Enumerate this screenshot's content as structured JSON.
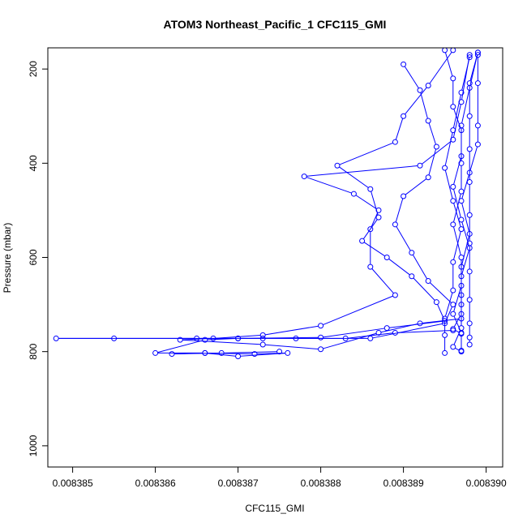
{
  "chart_data": {
    "type": "line",
    "title": "ATOM3 Northeast_Pacific_1 CFC115_GMI",
    "xlabel": "CFC115_GMI",
    "ylabel": "Pressure (mbar)",
    "xlim": [
      0.0083847,
      0.0083902
    ],
    "ylim": [
      1045,
      155
    ],
    "y_reversed": true,
    "grid": false,
    "legend": "none",
    "x_ticks": [
      0.008385,
      0.008386,
      0.008387,
      0.008388,
      0.008389,
      0.00839
    ],
    "x_tick_labels": [
      "0.008385",
      "0.008386",
      "0.008387",
      "0.008388",
      "0.008389",
      "0.008390"
    ],
    "y_ticks": [
      200,
      400,
      600,
      800,
      1000
    ],
    "y_tick_labels": [
      "200",
      "400",
      "600",
      "800",
      "1000"
    ],
    "series_color": "#0000ff",
    "series": [
      {
        "points": [
          [
            0.0083896,
            160
          ],
          [
            0.0083893,
            235
          ],
          [
            0.008389,
            300
          ],
          [
            0.0083889,
            355
          ],
          [
            0.0083882,
            405
          ],
          [
            0.0083886,
            455
          ],
          [
            0.0083887,
            515
          ],
          [
            0.0083885,
            565
          ],
          [
            0.0083888,
            600
          ],
          [
            0.0083891,
            640
          ],
          [
            0.0083894,
            695
          ],
          [
            0.0083895,
            735
          ],
          [
            0.0083888,
            750
          ],
          [
            0.008388,
            770
          ],
          [
            0.008387,
            772
          ],
          [
            0.0083855,
            772
          ],
          [
            0.0083848,
            772
          ],
          [
            0.0083865,
            772
          ],
          [
            0.0083873,
            772
          ],
          [
            0.0083883,
            772
          ],
          [
            0.0083889,
            760
          ],
          [
            0.0083896,
            755
          ]
        ]
      },
      {
        "points": [
          [
            0.0083898,
            170
          ],
          [
            0.0083897,
            270
          ],
          [
            0.0083896,
            350
          ],
          [
            0.0083892,
            405
          ],
          [
            0.0083878,
            428
          ],
          [
            0.0083884,
            465
          ],
          [
            0.0083887,
            500
          ],
          [
            0.0083886,
            540
          ],
          [
            0.0083886,
            620
          ],
          [
            0.0083889,
            680
          ],
          [
            0.008388,
            745
          ],
          [
            0.0083873,
            765
          ],
          [
            0.0083867,
            772
          ],
          [
            0.0083863,
            775
          ],
          [
            0.0083873,
            785
          ],
          [
            0.008388,
            795
          ],
          [
            0.0083887,
            760
          ],
          [
            0.0083892,
            740
          ],
          [
            0.0083897,
            730
          ]
        ]
      },
      {
        "points": [
          [
            0.008389,
            190
          ],
          [
            0.0083892,
            245
          ],
          [
            0.0083893,
            310
          ],
          [
            0.0083894,
            365
          ],
          [
            0.0083893,
            430
          ],
          [
            0.008389,
            470
          ],
          [
            0.0083889,
            530
          ],
          [
            0.0083891,
            590
          ],
          [
            0.0083893,
            650
          ],
          [
            0.0083896,
            700
          ],
          [
            0.0083895,
            740
          ],
          [
            0.0083886,
            772
          ],
          [
            0.0083877,
            772
          ],
          [
            0.008387,
            772
          ],
          [
            0.0083866,
            775
          ],
          [
            0.008386,
            803
          ],
          [
            0.0083866,
            803
          ],
          [
            0.0083872,
            805
          ],
          [
            0.0083876,
            803
          ],
          [
            0.008387,
            810
          ],
          [
            0.0083866,
            803
          ],
          [
            0.0083862,
            805
          ],
          [
            0.0083868,
            803
          ],
          [
            0.0083875,
            800
          ]
        ]
      },
      {
        "points": [
          [
            0.0083899,
            165
          ],
          [
            0.0083898,
            240
          ],
          [
            0.0083897,
            320
          ],
          [
            0.0083897,
            385
          ],
          [
            0.0083896,
            450
          ],
          [
            0.0083897,
            520
          ],
          [
            0.0083898,
            580
          ],
          [
            0.0083897,
            640
          ],
          [
            0.0083897,
            700
          ],
          [
            0.0083897,
            750
          ],
          [
            0.0083896,
            790
          ],
          [
            0.0083897,
            800
          ]
        ]
      },
      {
        "points": [
          [
            0.0083899,
            165
          ],
          [
            0.0083898,
            230
          ],
          [
            0.0083898,
            300
          ],
          [
            0.0083898,
            370
          ],
          [
            0.0083898,
            440
          ],
          [
            0.0083898,
            510
          ],
          [
            0.0083898,
            570
          ],
          [
            0.0083898,
            630
          ],
          [
            0.0083898,
            690
          ],
          [
            0.0083898,
            740
          ],
          [
            0.0083898,
            770
          ],
          [
            0.0083898,
            785
          ]
        ]
      },
      {
        "points": [
          [
            0.0083895,
            160
          ],
          [
            0.0083896,
            220
          ],
          [
            0.0083896,
            280
          ],
          [
            0.0083897,
            330
          ],
          [
            0.0083897,
            400
          ],
          [
            0.0083897,
            460
          ],
          [
            0.0083896,
            530
          ],
          [
            0.0083897,
            600
          ],
          [
            0.0083897,
            660
          ],
          [
            0.0083896,
            720
          ],
          [
            0.0083897,
            760
          ],
          [
            0.0083897,
            798
          ]
        ]
      },
      {
        "points": [
          [
            0.0083898,
            175
          ],
          [
            0.0083897,
            250
          ],
          [
            0.0083896,
            330
          ],
          [
            0.0083895,
            410
          ],
          [
            0.0083896,
            480
          ],
          [
            0.0083897,
            540
          ],
          [
            0.0083896,
            610
          ],
          [
            0.0083896,
            670
          ],
          [
            0.0083895,
            730
          ],
          [
            0.0083895,
            765
          ],
          [
            0.0083895,
            803
          ]
        ]
      },
      {
        "points": [
          [
            0.0083899,
            170
          ],
          [
            0.0083899,
            230
          ],
          [
            0.0083899,
            320
          ],
          [
            0.0083899,
            360
          ],
          [
            0.0083898,
            420
          ],
          [
            0.0083897,
            480
          ],
          [
            0.0083898,
            550
          ],
          [
            0.0083897,
            620
          ],
          [
            0.0083897,
            680
          ],
          [
            0.0083897,
            720
          ],
          [
            0.0083896,
            752
          ],
          [
            0.0083897,
            762
          ]
        ]
      }
    ]
  }
}
